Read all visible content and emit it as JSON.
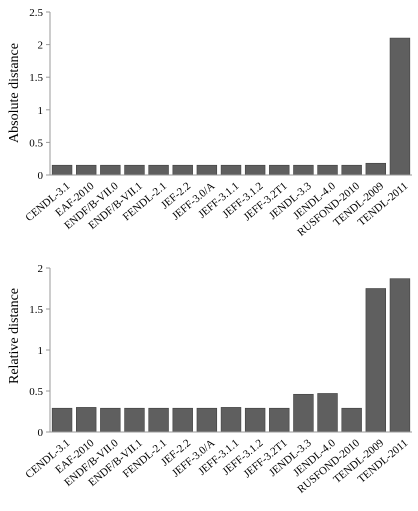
{
  "chart_data": [
    {
      "type": "bar",
      "title": "",
      "xlabel": "",
      "ylabel": "Absolute distance",
      "ylim": [
        0,
        2.5
      ],
      "yticks": [
        "0",
        "0.5",
        "1",
        "1.5",
        "2",
        "2.5"
      ],
      "grid": false,
      "categories": [
        "CENDL-3.1",
        "EAF-2010",
        "ENDF/B-VII.0",
        "ENDF/B-VII.1",
        "FENDL-2.1",
        "JEF-2.2",
        "JEFF-3.0/A",
        "JEFF-3.1.1",
        "JEFF-3.1.2",
        "JEFF-3.2T1",
        "JENDL-3.3",
        "JENDL-4.0",
        "RUSFOND-2010",
        "TENDL-2009",
        "TENDL-2011"
      ],
      "values": [
        0.15,
        0.15,
        0.15,
        0.15,
        0.15,
        0.15,
        0.15,
        0.15,
        0.15,
        0.15,
        0.15,
        0.15,
        0.15,
        0.18,
        2.1
      ],
      "color": "#5f5f5f"
    },
    {
      "type": "bar",
      "title": "",
      "xlabel": "",
      "ylabel": "Relative distance",
      "ylim": [
        0,
        2
      ],
      "yticks": [
        "0",
        "0.5",
        "1",
        "1.5",
        "2"
      ],
      "grid": false,
      "categories": [
        "CENDL-3.1",
        "EAF-2010",
        "ENDF/B-VII.0",
        "ENDF/B-VII.1",
        "FENDL-2.1",
        "JEF-2.2",
        "JEFF-3.0/A",
        "JEFF-3.1.1",
        "JEFF-3.1.2",
        "JEFF-3.2T1",
        "JENDL-3.3",
        "JENDL-4.0",
        "RUSFOND-2010",
        "TENDL-2009",
        "TENDL-2011"
      ],
      "values": [
        0.29,
        0.3,
        0.29,
        0.29,
        0.29,
        0.29,
        0.29,
        0.3,
        0.29,
        0.29,
        0.46,
        0.47,
        0.29,
        1.75,
        1.87
      ],
      "color": "#5f5f5f"
    }
  ]
}
